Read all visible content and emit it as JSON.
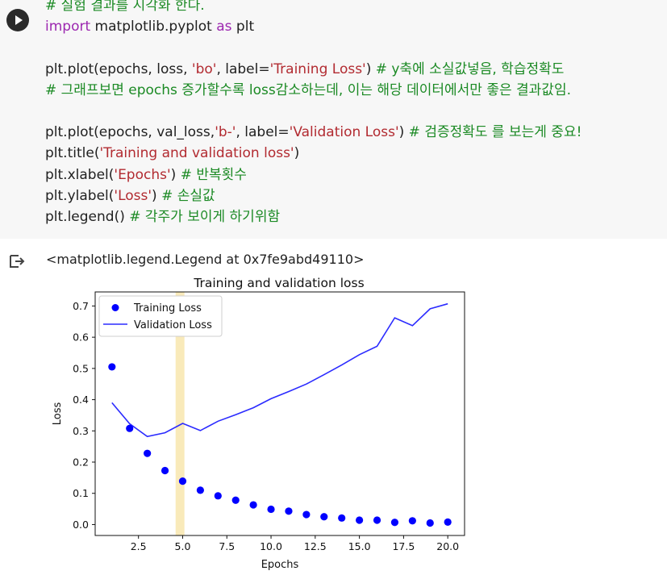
{
  "code_cell": {
    "lines": [
      [
        {
          "t": "# 실험 결과를 시각화 한다.",
          "c": "cm"
        }
      ],
      [
        {
          "t": "import",
          "c": "kw"
        },
        {
          "t": " matplotlib.pyplot ",
          "c": ""
        },
        {
          "t": "as",
          "c": "kw"
        },
        {
          "t": " plt",
          "c": ""
        }
      ],
      [],
      [
        {
          "t": "plt.plot(epochs, loss, ",
          "c": ""
        },
        {
          "t": "'bo'",
          "c": "str"
        },
        {
          "t": ", label=",
          "c": ""
        },
        {
          "t": "'Training Loss'",
          "c": "str"
        },
        {
          "t": ") ",
          "c": ""
        },
        {
          "t": "# y축에 소실값넣음, 학습정확도",
          "c": "cm"
        }
      ],
      [
        {
          "t": "# 그래프보면 epochs 증가할수록 loss감소하는데, 이는 해당 데이터에서만 좋은 결과값임.",
          "c": "cm"
        }
      ],
      [],
      [
        {
          "t": "plt.plot(epochs, val_loss,",
          "c": ""
        },
        {
          "t": "'b-'",
          "c": "str"
        },
        {
          "t": ", label=",
          "c": ""
        },
        {
          "t": "'Validation Loss'",
          "c": "str"
        },
        {
          "t": ") ",
          "c": ""
        },
        {
          "t": "# 검증정확도 를 보는게 중요!",
          "c": "cm"
        }
      ],
      [
        {
          "t": "plt.title(",
          "c": ""
        },
        {
          "t": "'Training and validation loss'",
          "c": "str"
        },
        {
          "t": ")",
          "c": ""
        }
      ],
      [
        {
          "t": "plt.xlabel(",
          "c": ""
        },
        {
          "t": "'Epochs'",
          "c": "str"
        },
        {
          "t": ") ",
          "c": ""
        },
        {
          "t": "# 반복횟수",
          "c": "cm"
        }
      ],
      [
        {
          "t": "plt.ylabel(",
          "c": ""
        },
        {
          "t": "'Loss'",
          "c": "str"
        },
        {
          "t": ") ",
          "c": ""
        },
        {
          "t": "# 손실값",
          "c": "cm"
        }
      ],
      [
        {
          "t": "plt.legend() ",
          "c": ""
        },
        {
          "t": "# 각주가 보이게 하기위함",
          "c": "cm"
        }
      ]
    ]
  },
  "output": {
    "text": "<matplotlib.legend.Legend at 0x7fe9abd49110>",
    "icon": "output-arrow-icon"
  },
  "chart_data": {
    "type": "line",
    "title": "Training and validation loss",
    "xlabel": "Epochs",
    "ylabel": "Loss",
    "xlim": [
      0.05,
      20.95
    ],
    "ylim": [
      -0.035,
      0.745
    ],
    "xticks": [
      "2.5",
      "5.0",
      "7.5",
      "10.0",
      "12.5",
      "15.0",
      "17.5",
      "20.0"
    ],
    "yticks": [
      "0.0",
      "0.1",
      "0.2",
      "0.3",
      "0.4",
      "0.5",
      "0.6",
      "0.7"
    ],
    "legend": "upper-left",
    "grid": false,
    "color": "#0000ff",
    "highlight_band": {
      "x": [
        4.6,
        5.1
      ],
      "color": "#f7e3a3"
    },
    "series": [
      {
        "name": "Training Loss",
        "style": "points",
        "x": [
          1,
          2,
          3,
          4,
          5,
          6,
          7,
          8,
          9,
          10,
          11,
          12,
          13,
          14,
          15,
          16,
          17,
          18,
          19,
          20
        ],
        "y": [
          0.505,
          0.308,
          0.228,
          0.173,
          0.139,
          0.11,
          0.092,
          0.078,
          0.063,
          0.049,
          0.043,
          0.032,
          0.025,
          0.021,
          0.014,
          0.014,
          0.007,
          0.012,
          0.005,
          0.008
        ]
      },
      {
        "name": "Validation Loss",
        "style": "line",
        "x": [
          1,
          2,
          3,
          4,
          5,
          6,
          7,
          8,
          9,
          10,
          11,
          12,
          13,
          14,
          15,
          16,
          17,
          18,
          19,
          20
        ],
        "y": [
          0.39,
          0.323,
          0.282,
          0.294,
          0.324,
          0.301,
          0.331,
          0.352,
          0.374,
          0.403,
          0.426,
          0.45,
          0.48,
          0.511,
          0.544,
          0.571,
          0.662,
          0.637,
          0.691,
          0.707
        ]
      }
    ]
  }
}
